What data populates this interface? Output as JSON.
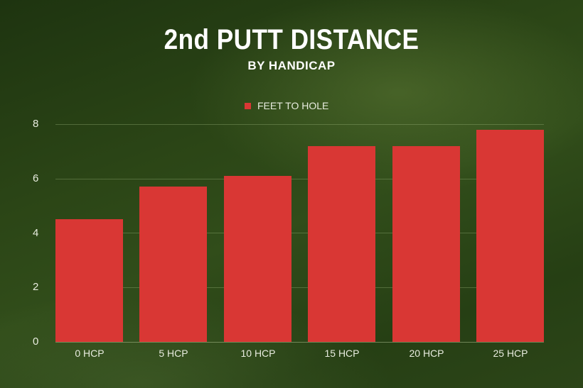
{
  "title": "2nd PUTT DISTANCE",
  "subtitle": "BY HANDICAP",
  "legend": {
    "label": "FEET TO HOLE",
    "color": "#d93734"
  },
  "y_ticks": [
    "0",
    "2",
    "4",
    "6",
    "8"
  ],
  "chart_data": {
    "type": "bar",
    "title": "2nd PUTT DISTANCE",
    "subtitle": "BY HANDICAP",
    "xlabel": "",
    "ylabel": "",
    "categories": [
      "0 HCP",
      "5 HCP",
      "10 HCP",
      "15 HCP",
      "20 HCP",
      "25 HCP"
    ],
    "series": [
      {
        "name": "FEET TO HOLE",
        "color": "#d93734",
        "values": [
          4.5,
          5.7,
          6.1,
          7.2,
          7.2,
          7.8
        ]
      }
    ],
    "ylim": [
      0,
      8
    ],
    "yticks": [
      0,
      2,
      4,
      6,
      8
    ],
    "grid": true,
    "legend_position": "top"
  }
}
